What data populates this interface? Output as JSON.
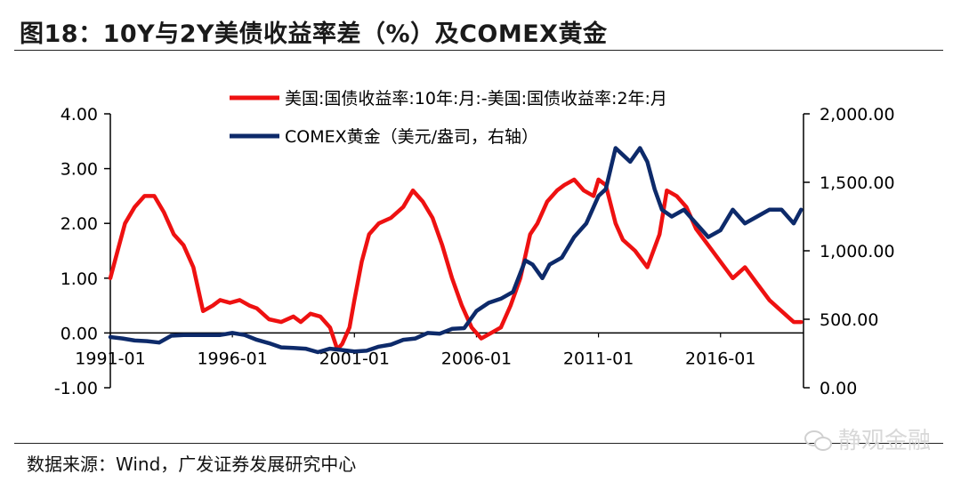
{
  "header": {
    "title": "图18：10Y与2Y美债收益率差（%）及COMEX黄金"
  },
  "footer": {
    "source": "数据来源：Wind，广发证券发展研究中心",
    "watermark": "静观金融"
  },
  "colors": {
    "spread": "#ee1111",
    "gold": "#0d2a6a",
    "axis": "#000000"
  },
  "chart_data": {
    "type": "line",
    "x_ticks": [
      "1991-01",
      "1996-01",
      "2001-01",
      "2006-01",
      "2011-01",
      "2016-01"
    ],
    "x_range": [
      1991.0,
      2019.4
    ],
    "y_left": {
      "range": [
        -1,
        4
      ],
      "ticks": [
        "-1.00",
        "0.00",
        "1.00",
        "2.00",
        "3.00",
        "4.00"
      ]
    },
    "y_right": {
      "range": [
        0,
        2000
      ],
      "ticks": [
        "0.00",
        "500.00",
        "1,000.00",
        "1,500.00",
        "2,000.00"
      ]
    },
    "legend_position": "top",
    "series": [
      {
        "name": "美国:国债收益率:10年:月:-美国:国债收益率:2年:月",
        "axis": "left",
        "color": "#ee1111",
        "x": [
          1991.0,
          1991.3,
          1991.6,
          1992.0,
          1992.4,
          1992.8,
          1993.2,
          1993.6,
          1994.0,
          1994.4,
          1994.8,
          1995.2,
          1995.5,
          1995.9,
          1996.3,
          1996.7,
          1997.0,
          1997.5,
          1998.0,
          1998.5,
          1998.8,
          1999.2,
          1999.6,
          2000.0,
          2000.3,
          2000.5,
          2000.8,
          2001.0,
          2001.3,
          2001.6,
          2002.0,
          2002.5,
          2003.0,
          2003.4,
          2003.8,
          2004.2,
          2004.6,
          2005.0,
          2005.4,
          2005.8,
          2006.2,
          2006.6,
          2007.0,
          2007.4,
          2007.8,
          2008.2,
          2008.5,
          2008.9,
          2009.3,
          2009.6,
          2010.0,
          2010.4,
          2010.8,
          2011.0,
          2011.3,
          2011.7,
          2012.0,
          2012.5,
          2013.0,
          2013.5,
          2013.8,
          2014.2,
          2014.6,
          2015.0,
          2015.5,
          2016.0,
          2016.5,
          2017.0,
          2017.5,
          2018.0,
          2018.5,
          2019.0,
          2019.3
        ],
        "y": [
          1.0,
          1.5,
          2.0,
          2.3,
          2.5,
          2.5,
          2.2,
          1.8,
          1.6,
          1.2,
          0.4,
          0.5,
          0.6,
          0.55,
          0.6,
          0.5,
          0.45,
          0.25,
          0.2,
          0.3,
          0.2,
          0.35,
          0.3,
          0.1,
          -0.3,
          -0.2,
          0.1,
          0.6,
          1.3,
          1.8,
          2.0,
          2.1,
          2.3,
          2.6,
          2.4,
          2.1,
          1.6,
          1.0,
          0.5,
          0.1,
          -0.1,
          0.0,
          0.1,
          0.5,
          1.0,
          1.8,
          2.0,
          2.4,
          2.6,
          2.7,
          2.8,
          2.6,
          2.5,
          2.8,
          2.7,
          2.0,
          1.7,
          1.5,
          1.2,
          1.8,
          2.6,
          2.5,
          2.3,
          1.9,
          1.6,
          1.3,
          1.0,
          1.2,
          0.9,
          0.6,
          0.4,
          0.2,
          0.2
        ]
      },
      {
        "name": "COMEX黄金（美元/盎司，右轴）",
        "axis": "right",
        "color": "#0d2a6a",
        "x": [
          1991.0,
          1991.5,
          1992.0,
          1992.5,
          1993.0,
          1993.5,
          1994.0,
          1994.5,
          1995.0,
          1995.5,
          1996.0,
          1996.5,
          1997.0,
          1997.5,
          1998.0,
          1998.5,
          1999.0,
          1999.5,
          2000.0,
          2000.5,
          2001.0,
          2001.5,
          2002.0,
          2002.5,
          2003.0,
          2003.5,
          2004.0,
          2004.5,
          2005.0,
          2005.5,
          2006.0,
          2006.5,
          2007.0,
          2007.5,
          2008.0,
          2008.3,
          2008.7,
          2009.0,
          2009.5,
          2010.0,
          2010.5,
          2011.0,
          2011.3,
          2011.7,
          2012.0,
          2012.3,
          2012.7,
          2013.0,
          2013.3,
          2013.6,
          2014.0,
          2014.5,
          2015.0,
          2015.5,
          2016.0,
          2016.5,
          2017.0,
          2017.5,
          2018.0,
          2018.5,
          2019.0,
          2019.3
        ],
        "y": [
          370,
          360,
          345,
          340,
          330,
          380,
          385,
          385,
          385,
          385,
          400,
          385,
          350,
          325,
          295,
          290,
          285,
          260,
          285,
          275,
          265,
          270,
          300,
          315,
          350,
          360,
          400,
          395,
          430,
          435,
          560,
          620,
          650,
          700,
          930,
          900,
          800,
          900,
          950,
          1100,
          1200,
          1400,
          1450,
          1750,
          1700,
          1650,
          1750,
          1650,
          1450,
          1300,
          1250,
          1300,
          1200,
          1100,
          1150,
          1300,
          1200,
          1250,
          1300,
          1300,
          1200,
          1300
        ]
      }
    ]
  }
}
